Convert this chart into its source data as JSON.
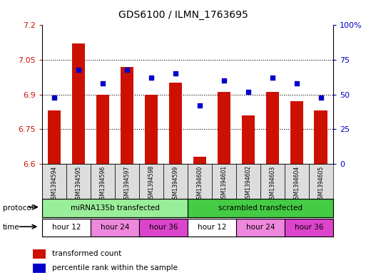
{
  "title": "GDS6100 / ILMN_1763695",
  "samples": [
    "GSM1394594",
    "GSM1394595",
    "GSM1394596",
    "GSM1394597",
    "GSM1394598",
    "GSM1394599",
    "GSM1394600",
    "GSM1394601",
    "GSM1394602",
    "GSM1394603",
    "GSM1394604",
    "GSM1394605"
  ],
  "bar_values": [
    6.83,
    7.12,
    6.9,
    7.02,
    6.9,
    6.95,
    6.63,
    6.91,
    6.81,
    6.91,
    6.87,
    6.83
  ],
  "dot_values": [
    48,
    68,
    58,
    68,
    62,
    65,
    42,
    60,
    52,
    62,
    58,
    48
  ],
  "y_min": 6.6,
  "y_max": 7.2,
  "y_ticks": [
    6.6,
    6.75,
    6.9,
    7.05,
    7.2
  ],
  "y_ticks_right": [
    0,
    25,
    50,
    75,
    100
  ],
  "bar_color": "#CC1100",
  "dot_color": "#0000CC",
  "protocol_labels": [
    "miRNA135b transfected",
    "scrambled transfected"
  ],
  "protocol_colors": [
    "#99EE99",
    "#44CC44"
  ],
  "time_labels": [
    "hour 12",
    "hour 24",
    "hour 36",
    "hour 12",
    "hour 24",
    "hour 36"
  ],
  "time_colors": [
    "#FFFFFF",
    "#EE88DD",
    "#DD44CC",
    "#FFFFFF",
    "#EE88DD",
    "#DD44CC"
  ],
  "legend_bar_label": "transformed count",
  "legend_dot_label": "percentile rank within the sample"
}
